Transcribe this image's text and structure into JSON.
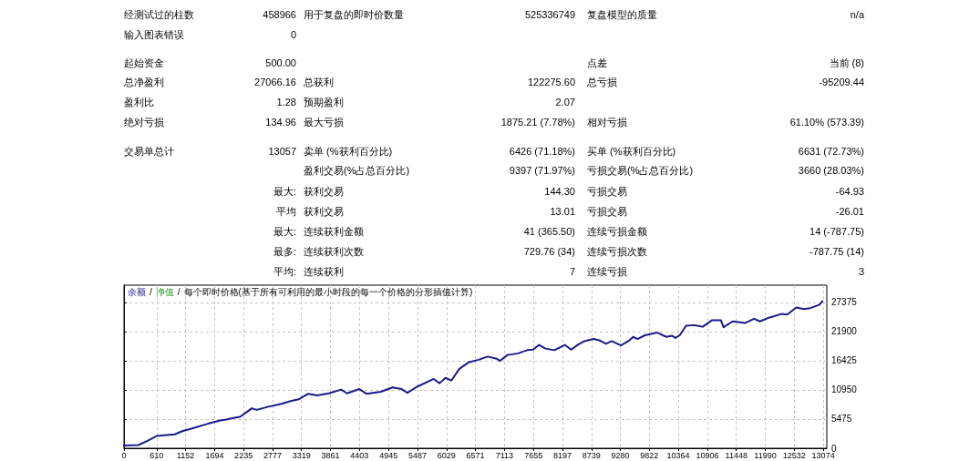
{
  "chart_data": [
    {
      "type": "other",
      "annotations": [
        "经测试过的柱数",
        "458966",
        "用于复盘的即时价数量",
        "525336749",
        "复盘模型的质量",
        "n/a",
        "输入图表错误",
        "0",
        "起始资金",
        "500.00",
        "点差",
        "当前 (8)",
        "总净盈利",
        "27066.16",
        "总获利",
        "122275.60",
        "总亏损",
        "-95209.44",
        "盈利比",
        "1.28",
        "预期盈利",
        "2.07",
        "绝对亏损",
        "134.96",
        "最大亏损",
        "1875.21 (7.78%)",
        "相对亏损",
        "61.10% (573.39)",
        "交易单总计",
        "13057",
        "卖单 (%获利百分比)",
        "6426 (71.18%)",
        "买单 (%获利百分比)",
        "6631 (72.73%)",
        "盈利交易(%占总百分比)",
        "9397 (71.97%)",
        "亏损交易(%占总百分比)",
        "3660 (28.03%)",
        "最大:",
        "获利交易",
        "144.30",
        "亏损交易",
        "-64.93",
        "平均",
        "获利交易",
        "13.01",
        "亏损交易",
        "-26.01",
        "最大:",
        "连续获利金额",
        "41 (365.50)",
        "连续亏损金额",
        "14 (-787.75)",
        "最多:",
        "连续获利次数",
        "729.76 (34)",
        "连续亏损次数",
        "-787.75 (14)",
        "平均:",
        "连续获利",
        "7",
        "连续亏损",
        "3"
      ]
    },
    {
      "type": "line",
      "annotations": [
        "/",
        "净值",
        "/",
        "每个即时价格(基于所有可利用的最小时段的每一个价格的分形插值计算)"
      ],
      "x": [
        0,
        270,
        440,
        610,
        950,
        1090,
        1230,
        1570,
        1800,
        1910,
        2050,
        2170,
        2310,
        2390,
        2480,
        2700,
        2930,
        3130,
        3270,
        3440,
        3610,
        3830,
        4060,
        4170,
        4400,
        4540,
        4800,
        5020,
        5190,
        5300,
        5470,
        5790,
        5900,
        6010,
        6120,
        6270,
        6440,
        6630,
        6800,
        6970,
        7030,
        7170,
        7370,
        7450,
        7540,
        7650,
        7760,
        7880,
        8050,
        8240,
        8360,
        8500,
        8610,
        8780,
        8900,
        9010,
        9120,
        9290,
        9430,
        9520,
        9600,
        9740,
        9970,
        10140,
        10250,
        10310,
        10390,
        10510,
        10650,
        10820,
        10990,
        11160,
        11210,
        11380,
        11610,
        11780,
        11890,
        12060,
        12290,
        12400,
        12570,
        12710,
        12830,
        13000,
        13057
      ],
      "series": [
        {
          "name": "余额",
          "color": "#1a1a8a",
          "values": [
            500,
            600,
            1400,
            2300,
            2600,
            3200,
            3600,
            4600,
            5200,
            5400,
            5700,
            5900,
            6900,
            7500,
            7200,
            7800,
            8300,
            8900,
            9200,
            10200,
            9900,
            10300,
            11000,
            10300,
            11100,
            10200,
            10600,
            11400,
            11100,
            10400,
            11500,
            13000,
            12200,
            13200,
            12700,
            14900,
            16100,
            16600,
            17200,
            16800,
            16400,
            17500,
            17800,
            18100,
            18400,
            18500,
            19400,
            18700,
            18400,
            19400,
            18500,
            19500,
            20100,
            20500,
            20200,
            19600,
            20100,
            19300,
            20100,
            20900,
            20500,
            21200,
            21700,
            20900,
            21100,
            20700,
            21200,
            23000,
            23100,
            22800,
            24000,
            24000,
            22700,
            23800,
            23500,
            24300,
            23800,
            24500,
            25200,
            25100,
            26400,
            26100,
            26300,
            26900,
            27600
          ]
        }
      ],
      "xlim": [
        0,
        13140
      ],
      "xticks": [
        0,
        610,
        1152,
        1694,
        2235,
        2777,
        3319,
        3861,
        4403,
        4945,
        5487,
        6029,
        6571,
        7113,
        7655,
        8197,
        8739,
        9280,
        9822,
        10364,
        10906,
        11448,
        11990,
        12532,
        13074
      ],
      "ylim": [
        0,
        30600
      ],
      "yticks": [
        0,
        5475,
        10950,
        16425,
        21900,
        27375
      ],
      "grid": true,
      "legend": "top left",
      "marker": "none"
    }
  ]
}
